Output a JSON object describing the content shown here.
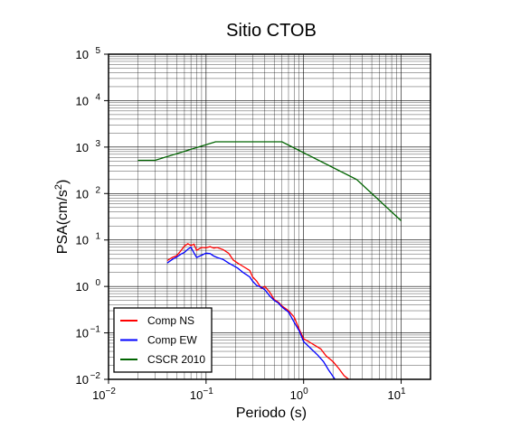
{
  "chart_data": {
    "type": "line",
    "title": "Sitio CTOB",
    "xlabel": "Periodo (s)",
    "ylabel": "PSA(cm/s²)",
    "xscale": "log",
    "yscale": "log",
    "xlim": [
      0.01,
      20
    ],
    "ylim": [
      0.01,
      100000
    ],
    "grid": true,
    "legend_position": "bottom-left",
    "x_ticks": [
      {
        "value": 0.01,
        "base": "10",
        "exp": "−2"
      },
      {
        "value": 0.1,
        "base": "10",
        "exp": "−1"
      },
      {
        "value": 1,
        "base": "10",
        "exp": "0"
      },
      {
        "value": 10,
        "base": "10",
        "exp": "1"
      }
    ],
    "y_ticks": [
      {
        "value": 0.01,
        "base": "10",
        "exp": "−2"
      },
      {
        "value": 0.1,
        "base": "10",
        "exp": "−1"
      },
      {
        "value": 1,
        "base": "10",
        "exp": "0"
      },
      {
        "value": 10,
        "base": "10",
        "exp": "1"
      },
      {
        "value": 100,
        "base": "10",
        "exp": "2"
      },
      {
        "value": 1000,
        "base": "10",
        "exp": "3"
      },
      {
        "value": 10000,
        "base": "10",
        "exp": "4"
      },
      {
        "value": 100000,
        "base": "10",
        "exp": "5"
      }
    ],
    "series": [
      {
        "name": "Comp NS",
        "color": "#ff0000",
        "points": [
          [
            0.04,
            3.6
          ],
          [
            0.045,
            4.2
          ],
          [
            0.05,
            4.6
          ],
          [
            0.055,
            5.8
          ],
          [
            0.06,
            7.4
          ],
          [
            0.065,
            8.3
          ],
          [
            0.07,
            7.6
          ],
          [
            0.075,
            8.1
          ],
          [
            0.08,
            6.0
          ],
          [
            0.09,
            6.9
          ],
          [
            0.1,
            6.8
          ],
          [
            0.11,
            7.2
          ],
          [
            0.12,
            6.7
          ],
          [
            0.13,
            6.9
          ],
          [
            0.15,
            6.2
          ],
          [
            0.17,
            5.2
          ],
          [
            0.19,
            3.7
          ],
          [
            0.21,
            3.2
          ],
          [
            0.24,
            2.7
          ],
          [
            0.28,
            2.2
          ],
          [
            0.3,
            1.6
          ],
          [
            0.33,
            1.3
          ],
          [
            0.37,
            0.9
          ],
          [
            0.4,
            1.0
          ],
          [
            0.45,
            0.75
          ],
          [
            0.5,
            0.52
          ],
          [
            0.55,
            0.46
          ],
          [
            0.6,
            0.38
          ],
          [
            0.7,
            0.3
          ],
          [
            0.8,
            0.22
          ],
          [
            0.9,
            0.12
          ],
          [
            1.0,
            0.075
          ],
          [
            1.2,
            0.06
          ],
          [
            1.5,
            0.045
          ],
          [
            1.7,
            0.032
          ],
          [
            2.0,
            0.024
          ],
          [
            2.3,
            0.017
          ],
          [
            2.6,
            0.012
          ],
          [
            2.9,
            0.01
          ]
        ]
      },
      {
        "name": "Comp EW",
        "color": "#0000ff",
        "points": [
          [
            0.04,
            3.2
          ],
          [
            0.045,
            3.8
          ],
          [
            0.05,
            4.3
          ],
          [
            0.055,
            4.9
          ],
          [
            0.06,
            5.4
          ],
          [
            0.065,
            6.3
          ],
          [
            0.07,
            7.0
          ],
          [
            0.075,
            5.3
          ],
          [
            0.08,
            4.2
          ],
          [
            0.09,
            4.7
          ],
          [
            0.1,
            5.2
          ],
          [
            0.11,
            5.1
          ],
          [
            0.12,
            4.5
          ],
          [
            0.13,
            4.2
          ],
          [
            0.15,
            3.8
          ],
          [
            0.17,
            3.2
          ],
          [
            0.19,
            2.8
          ],
          [
            0.21,
            2.5
          ],
          [
            0.24,
            2.0
          ],
          [
            0.28,
            1.6
          ],
          [
            0.3,
            1.3
          ],
          [
            0.33,
            1.05
          ],
          [
            0.37,
            0.95
          ],
          [
            0.4,
            0.85
          ],
          [
            0.45,
            0.62
          ],
          [
            0.5,
            0.5
          ],
          [
            0.55,
            0.44
          ],
          [
            0.6,
            0.36
          ],
          [
            0.7,
            0.28
          ],
          [
            0.8,
            0.17
          ],
          [
            0.9,
            0.11
          ],
          [
            1.0,
            0.065
          ],
          [
            1.2,
            0.045
          ],
          [
            1.4,
            0.033
          ],
          [
            1.6,
            0.024
          ],
          [
            1.8,
            0.016
          ],
          [
            2.1,
            0.01
          ]
        ]
      },
      {
        "name": "CSCR 2010",
        "color": "#006400",
        "points": [
          [
            0.02,
            520
          ],
          [
            0.03,
            520
          ],
          [
            0.125,
            1300
          ],
          [
            0.6,
            1300
          ],
          [
            3.5,
            200
          ],
          [
            10,
            26
          ]
        ]
      }
    ]
  }
}
